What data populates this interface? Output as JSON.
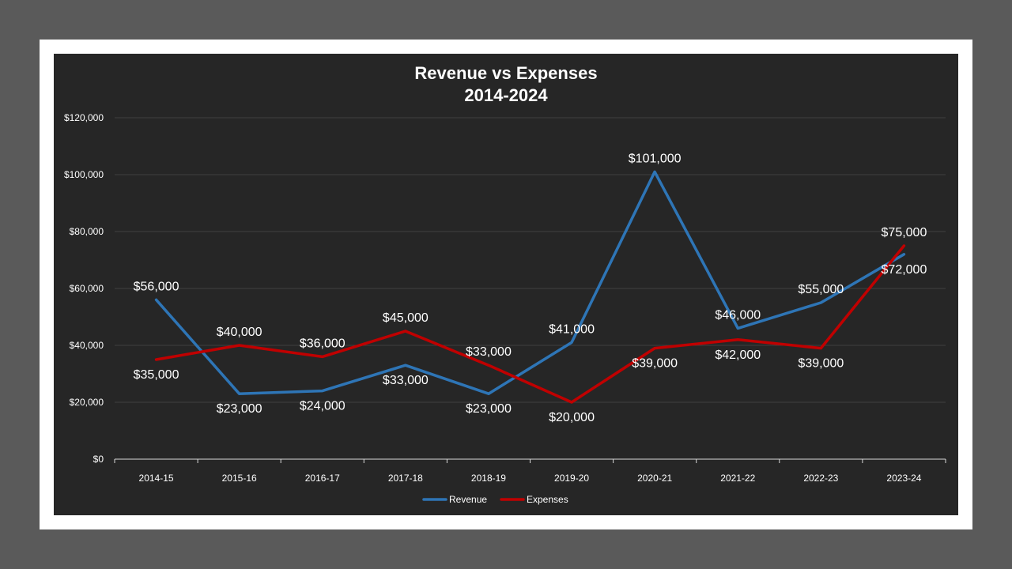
{
  "chart_data": {
    "type": "line",
    "title": "Revenue vs Expenses",
    "subtitle": "2014-2024",
    "xlabel": "",
    "ylabel": "",
    "categories": [
      "2014-15",
      "2015-16",
      "2016-17",
      "2017-18",
      "2018-19",
      "2019-20",
      "2020-21",
      "2021-22",
      "2022-23",
      "2023-24"
    ],
    "ylim": [
      0,
      120000
    ],
    "yticks": [
      0,
      20000,
      40000,
      60000,
      80000,
      100000,
      120000
    ],
    "ytick_labels": [
      "$0",
      "$20,000",
      "$40,000",
      "$60,000",
      "$80,000",
      "$100,000",
      "$120,000"
    ],
    "grid": true,
    "legend_position": "bottom",
    "series": [
      {
        "name": "Revenue",
        "color": "#2e75b6",
        "values": [
          56000,
          23000,
          24000,
          33000,
          23000,
          41000,
          101000,
          46000,
          55000,
          72000
        ],
        "labels": [
          "$56,000",
          "$23,000",
          "$24,000",
          "$33,000",
          "$23,000",
          "$41,000",
          "$101,000",
          "$46,000",
          "$55,000",
          "$72,000"
        ]
      },
      {
        "name": "Expenses",
        "color": "#c00000",
        "values": [
          35000,
          40000,
          36000,
          45000,
          33000,
          20000,
          39000,
          42000,
          39000,
          75000
        ],
        "labels": [
          "$35,000",
          "$40,000",
          "$36,000",
          "$45,000",
          "$33,000",
          "$20,000",
          "$39,000",
          "$42,000",
          "$39,000",
          "$75,000"
        ]
      }
    ]
  },
  "colors": {
    "background": "#5a5a5a",
    "frame": "#ffffff",
    "chart_area": "#262626",
    "gridline": "#404040",
    "axis": "#d9d9d9",
    "text": "#ffffff"
  }
}
